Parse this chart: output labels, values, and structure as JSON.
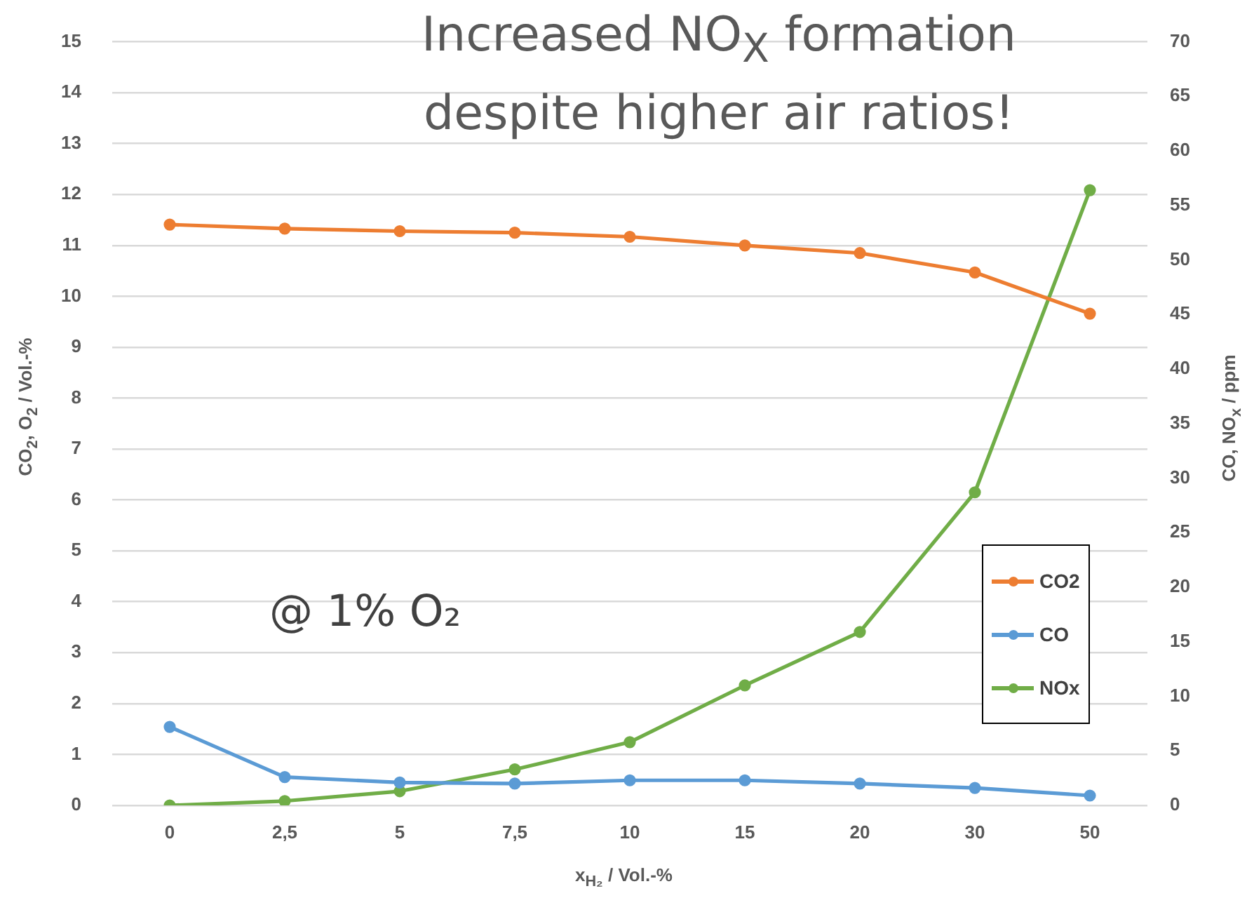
{
  "chart_data": {
    "type": "line",
    "title": "Increased NO$_{X}$ formation despite higher air ratios!",
    "annotations": [
      "@ 1% O₂"
    ],
    "xlabel": "x$_{H₂}$ / Vol.-%",
    "ylabel": "CO$_{2}$, O$_{2}$ / Vol.-%",
    "y2label": "CO, NO$_{x}$ / ppm",
    "categories": [
      "0",
      "2,5",
      "5",
      "7,5",
      "10",
      "15",
      "20",
      "30",
      "50"
    ],
    "series": [
      {
        "name": "CO2",
        "color": "#ed7d31",
        "values": [
          11.41,
          11.33,
          11.28,
          11.25,
          11.17,
          11.0,
          10.85,
          10.47,
          9.66
        ]
      },
      {
        "name": "CO",
        "color": "#5b9bd5",
        "axis": "y2",
        "values": [
          7.2,
          2.6,
          2.1,
          2.0,
          2.3,
          2.3,
          2.0,
          1.6,
          0.9
        ]
      },
      {
        "name": "NOx",
        "color": "#70ad47",
        "axis": "y2",
        "values": [
          0,
          0.4,
          1.3,
          3.3,
          5.8,
          11.0,
          15.9,
          28.7,
          56.4
        ]
      }
    ],
    "ylim": [
      0,
      15
    ],
    "yticks": [
      0,
      1,
      2,
      3,
      4,
      5,
      6,
      7,
      8,
      9,
      10,
      11,
      12,
      13,
      14,
      15
    ],
    "y2lim": [
      0,
      70
    ],
    "y2ticks": [
      0,
      5,
      10,
      15,
      20,
      25,
      30,
      35,
      40,
      45,
      50,
      55,
      60,
      65,
      70
    ],
    "grid": "y",
    "legend": "right",
    "marker": "circle",
    "line_style": "solid"
  }
}
